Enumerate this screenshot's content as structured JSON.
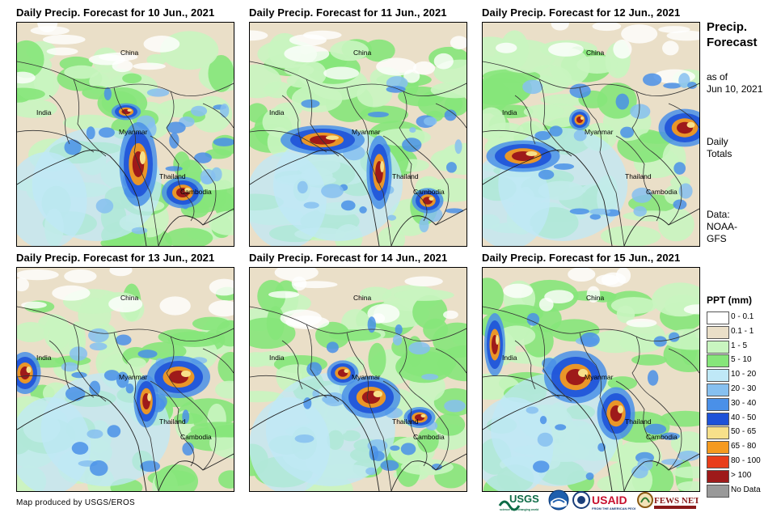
{
  "panels": [
    {
      "title": "Daily Precip. Forecast for 10 Jun., 2021"
    },
    {
      "title": "Daily Precip. Forecast for 11 Jun., 2021"
    },
    {
      "title": "Daily Precip. Forecast for 12 Jun., 2021"
    },
    {
      "title": "Daily Precip. Forecast for 13 Jun., 2021"
    },
    {
      "title": "Daily Precip. Forecast for 14 Jun., 2021"
    },
    {
      "title": "Daily Precip. Forecast for 15 Jun., 2021"
    }
  ],
  "places": {
    "china": "China",
    "india": "India",
    "myanmar": "Myanmar",
    "thailand": "Thailand",
    "cambodia": "Cambodia"
  },
  "side": {
    "title_line1": "Precip.",
    "title_line2": "Forecast",
    "asof_line1": "as of",
    "asof_line2": "Jun 10, 2021",
    "totals_line1": "Daily",
    "totals_line2": "Totals",
    "data_line1": "Data:",
    "data_line2": "NOAA-",
    "data_line3": "GFS"
  },
  "legend": {
    "title": "PPT (mm)",
    "items": [
      {
        "label": "0 - 0.1",
        "color": "#ffffff"
      },
      {
        "label": "0.1 - 1",
        "color": "#eadfc8"
      },
      {
        "label": "1 - 5",
        "color": "#c9f5c0"
      },
      {
        "label": "5 - 10",
        "color": "#86e67a"
      },
      {
        "label": "10 - 20",
        "color": "#bfe8f7"
      },
      {
        "label": "20 - 30",
        "color": "#86c0f0"
      },
      {
        "label": "30 - 40",
        "color": "#4a90e8"
      },
      {
        "label": "40 - 50",
        "color": "#1e52d8"
      },
      {
        "label": "50 - 65",
        "color": "#f7e08a"
      },
      {
        "label": "65 - 80",
        "color": "#f59a1f"
      },
      {
        "label": "80 - 100",
        "color": "#e83d1a"
      },
      {
        "label": "> 100",
        "color": "#9e1a1a"
      },
      {
        "label": "No Data",
        "color": "#999999"
      }
    ]
  },
  "credit": "Map produced by USGS/EROS",
  "logos": {
    "usgs": "USGS",
    "usaid": "USAID",
    "fewsnet": "FEWS NET"
  }
}
